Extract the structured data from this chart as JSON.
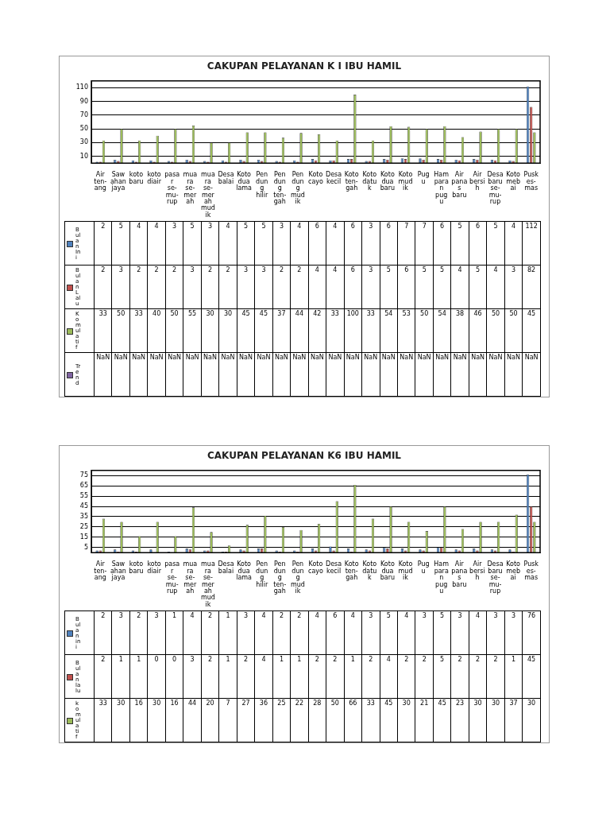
{
  "chart_data": [
    {
      "type": "bar",
      "title": "CAKUPAN PELAYANAN K I IBU HAMIL",
      "categories": [
        "Air ten-ang",
        "Saw ahan jaya",
        "koto baru",
        "koto diair",
        "pasa r se-mu-rup",
        "mua ra se-mer ah",
        "mua ra se-mer ah mud ik",
        "Desa balai",
        "Koto dua lama",
        "Pen dun g hilir",
        "Pen dun g ten-gah",
        "Pen dun g mud ik",
        "Koto cayo",
        "Desa kecil",
        "Koto ten-gah",
        "Koto datu k",
        "Koto dua baru",
        "Koto mud ik",
        "Pug u",
        "Ham para n pug u",
        "Air pana s baru",
        "Air bersi h",
        "Desa baru se-mu-rup",
        "Koto meb ai",
        "Pusk es-mas"
      ],
      "series": [
        {
          "name": "Bulan Ini",
          "color": "#4f81bd",
          "values": [
            2,
            5,
            4,
            4,
            3,
            5,
            3,
            4,
            5,
            5,
            3,
            4,
            6,
            4,
            6,
            3,
            6,
            7,
            7,
            6,
            5,
            6,
            5,
            4,
            112
          ]
        },
        {
          "name": "Bulan Lalu",
          "color": "#c0504d",
          "values": [
            2,
            3,
            2,
            2,
            2,
            3,
            2,
            2,
            3,
            3,
            2,
            2,
            4,
            4,
            6,
            3,
            5,
            6,
            5,
            5,
            4,
            5,
            4,
            3,
            82
          ]
        },
        {
          "name": "Komulatif",
          "color": "#9bbb59",
          "values": [
            33,
            50,
            33,
            40,
            50,
            55,
            30,
            30,
            45,
            45,
            37,
            44,
            42,
            33,
            100,
            33,
            54,
            53,
            50,
            54,
            38,
            46,
            50,
            50,
            45
          ]
        },
        {
          "name": "Trend",
          "color": "#8064a2",
          "type": "line",
          "values": [
            null,
            null,
            null,
            null,
            null,
            null,
            null,
            null,
            null,
            null,
            null,
            null,
            null,
            null,
            null,
            null,
            null,
            null,
            null,
            null,
            null,
            null,
            null,
            null,
            null
          ],
          "value_labels": [
            "NaN",
            "NaN",
            "NaN",
            "NaN",
            "NaN",
            "NaN",
            "NaN",
            "NaN",
            "NaN",
            "NaN",
            "NaN",
            "NaN",
            "NaN",
            "NaN",
            "NaN",
            "NaN",
            "NaN",
            "NaN",
            "NaN",
            "NaN",
            "NaN",
            "NaN",
            "NaN",
            "NaN",
            "NaN"
          ]
        }
      ],
      "ylim": [
        0,
        120
      ],
      "yticks": [
        10,
        30,
        50,
        70,
        90,
        110
      ],
      "grid": "y",
      "legend": "bottom",
      "data_labels": true
    },
    {
      "type": "bar",
      "title": "CAKUPAN PELAYANAN K6 IBU HAMIL",
      "categories": [
        "Air ten-ang",
        "Saw ahan jaya",
        "koto baru",
        "koto diair",
        "pasa r se-mu-rup",
        "mua ra se-mer ah",
        "mua ra se-mer ah mud ik",
        "Desa balai",
        "Koto dua lama",
        "Pen dun g hilir",
        "Pen dun g ten-gah",
        "Pen dun g mud ik",
        "Koto cayo",
        "Desa kecil",
        "Koto ten-gah",
        "Koto datu k",
        "Koto dua baru",
        "Koto mud ik",
        "Pug u",
        "Ham para n pug u",
        "Air pana s baru",
        "Air bersi h",
        "Desa baru se-mu-rup",
        "Koto meb ai",
        "Pusk es-mas"
      ],
      "series": [
        {
          "name": "Bulan ini",
          "color": "#4f81bd",
          "values": [
            2,
            3,
            2,
            3,
            1,
            4,
            2,
            1,
            3,
            4,
            2,
            2,
            4,
            6,
            4,
            3,
            5,
            4,
            3,
            5,
            3,
            4,
            3,
            3,
            76
          ]
        },
        {
          "name": "Bulan lalu",
          "color": "#c0504d",
          "values": [
            2,
            1,
            1,
            0,
            0,
            3,
            2,
            1,
            2,
            4,
            1,
            1,
            2,
            2,
            1,
            2,
            4,
            2,
            2,
            5,
            2,
            2,
            2,
            1,
            45
          ]
        },
        {
          "name": "komulatif",
          "color": "#9bbb59",
          "values": [
            33,
            30,
            16,
            30,
            16,
            44,
            20,
            7,
            27,
            36,
            25,
            22,
            28,
            50,
            66,
            33,
            45,
            30,
            21,
            45,
            23,
            30,
            30,
            37,
            30
          ]
        }
      ],
      "ylim": [
        0,
        80
      ],
      "yticks": [
        5,
        15,
        25,
        35,
        45,
        55,
        65,
        75
      ],
      "grid": "y",
      "legend": "bottom",
      "data_labels": true
    }
  ]
}
